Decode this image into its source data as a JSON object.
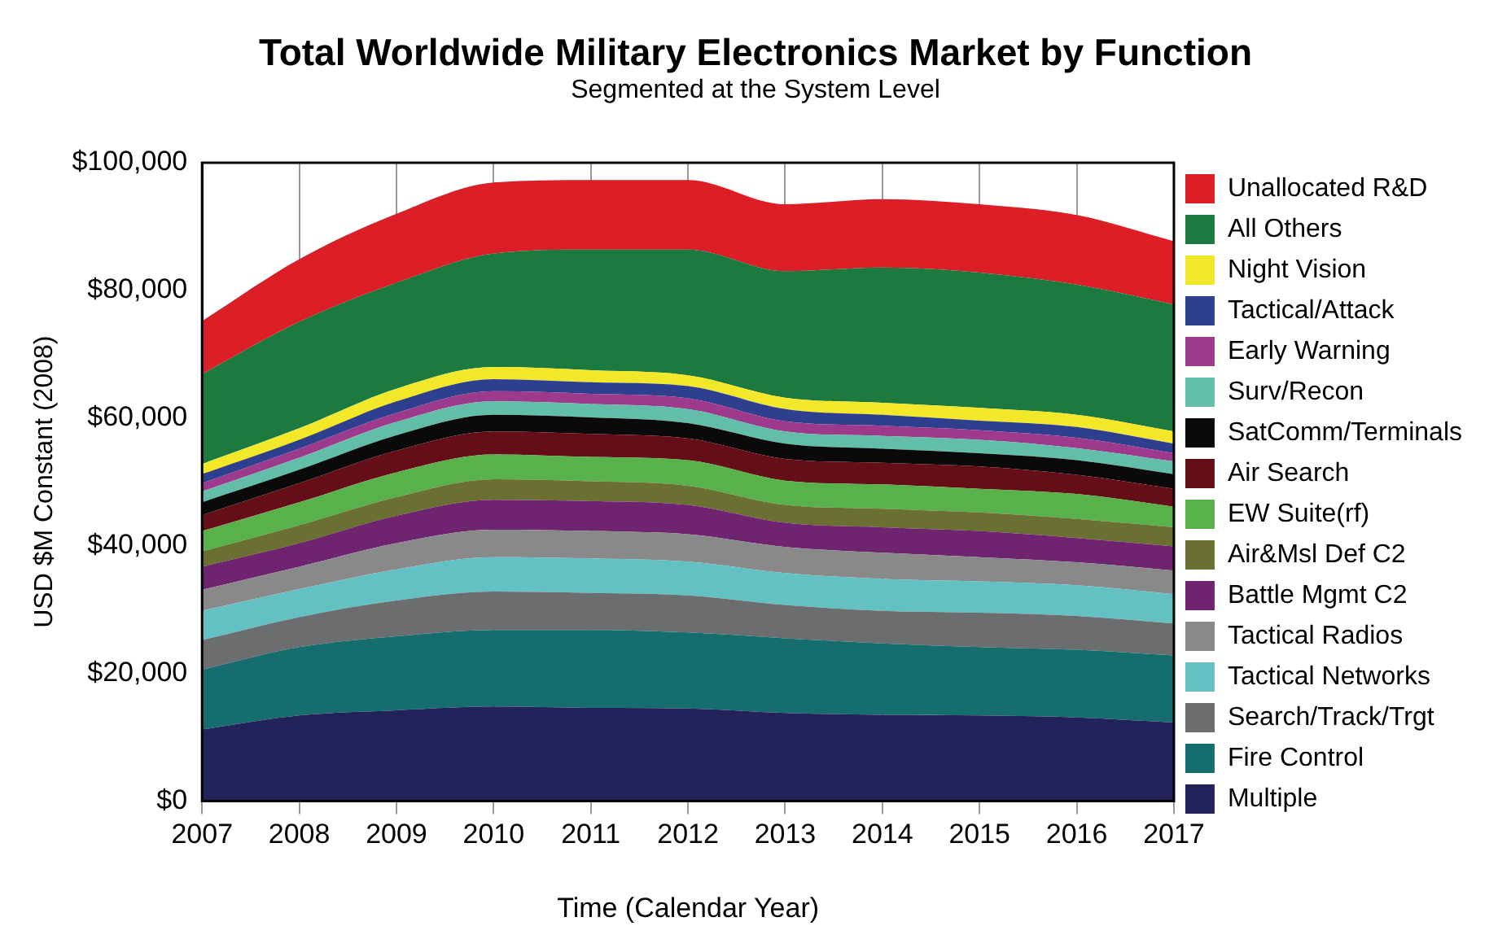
{
  "chart_data": {
    "type": "area",
    "title": "Total Worldwide Military Electronics Market by Function",
    "subtitle": "Segmented at the System Level",
    "xlabel": "Time (Calendar Year)",
    "ylabel": "USD $M Constant (2008)",
    "stacked": true,
    "grid": "x",
    "legend": "right",
    "x": [
      2007,
      2008,
      2009,
      2010,
      2011,
      2012,
      2013,
      2014,
      2015,
      2016,
      2017
    ],
    "xlim": [
      2007,
      2017
    ],
    "xticks": [
      2007,
      2008,
      2009,
      2010,
      2011,
      2012,
      2013,
      2014,
      2015,
      2016,
      2017
    ],
    "ylim": [
      0,
      100000
    ],
    "yticks": [
      {
        "value": 0,
        "label": "$0"
      },
      {
        "value": 20000,
        "label": "$20,000"
      },
      {
        "value": 40000,
        "label": "$40,000"
      },
      {
        "value": 60000,
        "label": "$60,000"
      },
      {
        "value": 80000,
        "label": "$80,000"
      },
      {
        "value": 100000,
        "label": "$100,000"
      }
    ],
    "series": [
      {
        "name": "Multiple",
        "color": "#24225a",
        "values": [
          11200,
          13400,
          14200,
          14800,
          14600,
          14500,
          13800,
          13500,
          13400,
          13100,
          12300
        ]
      },
      {
        "name": "Fire Control",
        "color": "#166d6e",
        "values": [
          9400,
          10700,
          11600,
          12000,
          12200,
          11900,
          11700,
          11200,
          10700,
          10600,
          10500
        ]
      },
      {
        "name": "Search/Track/Trgt",
        "color": "#6b6d6f",
        "values": [
          4600,
          4700,
          5600,
          6000,
          5800,
          5800,
          5200,
          5100,
          5400,
          5300,
          5000
        ]
      },
      {
        "name": "Tactical Networks",
        "color": "#63c0c3",
        "values": [
          4600,
          4400,
          4900,
          5400,
          5400,
          5300,
          5000,
          5000,
          4900,
          4800,
          4600
        ]
      },
      {
        "name": "Tactical Radios",
        "color": "#898989",
        "values": [
          3300,
          3500,
          4100,
          4300,
          4300,
          4300,
          4100,
          4100,
          3800,
          3600,
          3700
        ]
      },
      {
        "name": "Battle Mgmt C2",
        "color": "#6f246f",
        "values": [
          3600,
          3700,
          4300,
          4700,
          4700,
          4600,
          3800,
          4000,
          4100,
          3800,
          3800
        ]
      },
      {
        "name": "Air&Msl Def C2",
        "color": "#6a7031",
        "values": [
          2400,
          2800,
          2900,
          3200,
          3100,
          3000,
          2800,
          2900,
          2900,
          3000,
          3000
        ]
      },
      {
        "name": "EW Suite(rf)",
        "color": "#58b14a",
        "values": [
          3200,
          3600,
          3900,
          3900,
          3800,
          4000,
          3800,
          3800,
          3700,
          3900,
          3200
        ]
      },
      {
        "name": "Air Search",
        "color": "#650e18",
        "values": [
          2500,
          3000,
          3400,
          3600,
          3600,
          3400,
          3400,
          3400,
          3500,
          3000,
          2800
        ]
      },
      {
        "name": "SatComm/Terminals",
        "color": "#0a0a0a",
        "values": [
          2000,
          2100,
          2400,
          2600,
          2600,
          2400,
          2400,
          2200,
          2100,
          2300,
          2300
        ]
      },
      {
        "name": "Surv/Recon",
        "color": "#62bda9",
        "values": [
          1700,
          1900,
          2100,
          2100,
          2100,
          2200,
          1900,
          2000,
          2100,
          1900,
          2000
        ]
      },
      {
        "name": "Early Warning",
        "color": "#9d3a8b",
        "values": [
          1300,
          1400,
          1400,
          1600,
          1600,
          1700,
          1600,
          1600,
          1500,
          1600,
          1300
        ]
      },
      {
        "name": "Tactical/Attack",
        "color": "#2f3f8f",
        "values": [
          1400,
          1400,
          1800,
          1900,
          1800,
          1900,
          1900,
          1700,
          1500,
          1700,
          1500
        ]
      },
      {
        "name": "Night Vision",
        "color": "#f2e829",
        "values": [
          1600,
          1800,
          2000,
          1900,
          1900,
          1700,
          1800,
          1900,
          2000,
          1900,
          1900
        ]
      },
      {
        "name": "All Others",
        "color": "#1c7a40",
        "values": [
          14100,
          16700,
          16600,
          17800,
          18900,
          19700,
          19800,
          21200,
          21200,
          20400,
          19900
        ]
      },
      {
        "name": "Unallocated R&D",
        "color": "#dc1f26",
        "values": [
          8300,
          9800,
          10800,
          11100,
          10900,
          10900,
          10500,
          10700,
          10700,
          10900,
          9900
        ]
      }
    ]
  }
}
